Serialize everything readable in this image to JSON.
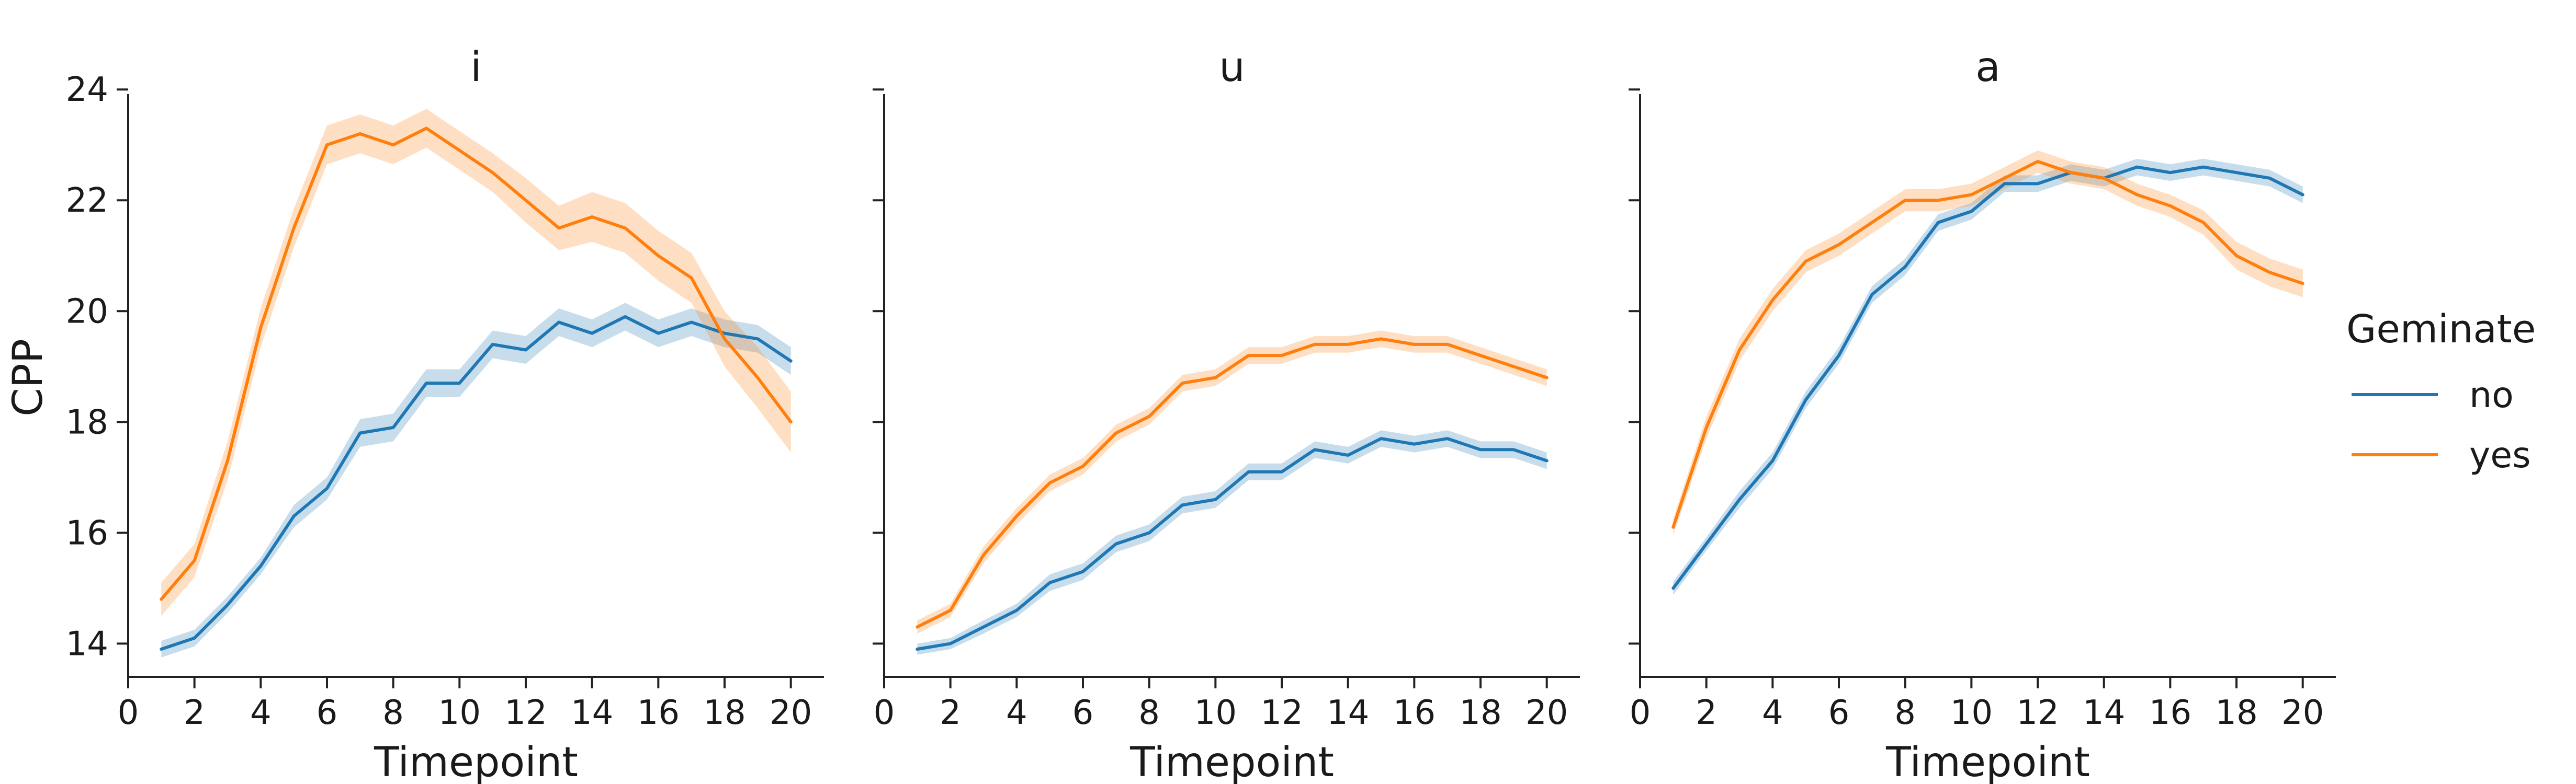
{
  "colors": {
    "no": "#1f77b4",
    "yes": "#ff7f0e"
  },
  "legend": {
    "title": "Geminate",
    "entries": [
      {
        "name": "no",
        "color": "#1f77b4"
      },
      {
        "name": "yes",
        "color": "#ff7f0e"
      }
    ],
    "placement": "right"
  },
  "chart_data": [
    {
      "type": "line",
      "title": "i",
      "xlabel": "Timepoint",
      "ylabel": "CPP",
      "xlim": [
        0,
        21
      ],
      "ylim": [
        13.4,
        24.2
      ],
      "xticks": [
        0,
        2,
        4,
        6,
        8,
        10,
        12,
        14,
        16,
        18,
        20
      ],
      "yticks": [
        14,
        16,
        18,
        20,
        22,
        24
      ],
      "grid": false,
      "x": [
        1,
        2,
        3,
        4,
        5,
        6,
        7,
        8,
        9,
        10,
        11,
        12,
        13,
        14,
        15,
        16,
        17,
        18,
        19,
        20
      ],
      "series": [
        {
          "name": "no",
          "values": [
            13.9,
            14.1,
            14.7,
            15.4,
            16.3,
            16.8,
            17.8,
            17.9,
            18.7,
            18.7,
            19.4,
            19.3,
            19.8,
            19.6,
            19.9,
            19.6,
            19.8,
            19.6,
            19.5,
            19.1
          ],
          "ci": [
            0.15,
            0.15,
            0.15,
            0.15,
            0.2,
            0.2,
            0.25,
            0.25,
            0.25,
            0.25,
            0.25,
            0.25,
            0.25,
            0.25,
            0.25,
            0.25,
            0.25,
            0.25,
            0.25,
            0.25
          ]
        },
        {
          "name": "yes",
          "values": [
            14.8,
            15.5,
            17.3,
            19.7,
            21.5,
            23.0,
            23.2,
            23.0,
            23.3,
            22.9,
            22.5,
            22.0,
            21.5,
            21.7,
            21.5,
            21.0,
            20.6,
            19.5,
            18.8,
            18.0
          ],
          "ci": [
            0.3,
            0.3,
            0.35,
            0.35,
            0.35,
            0.35,
            0.35,
            0.35,
            0.35,
            0.35,
            0.35,
            0.4,
            0.4,
            0.45,
            0.45,
            0.45,
            0.45,
            0.5,
            0.55,
            0.55
          ]
        }
      ]
    },
    {
      "type": "line",
      "title": "u",
      "xlabel": "Timepoint",
      "ylabel": "",
      "xlim": [
        0,
        21
      ],
      "ylim": [
        13.4,
        24.2
      ],
      "xticks": [
        0,
        2,
        4,
        6,
        8,
        10,
        12,
        14,
        16,
        18,
        20
      ],
      "yticks": [
        14,
        16,
        18,
        20,
        22,
        24
      ],
      "grid": false,
      "x": [
        1,
        2,
        3,
        4,
        5,
        6,
        7,
        8,
        9,
        10,
        11,
        12,
        13,
        14,
        15,
        16,
        17,
        18,
        19,
        20
      ],
      "series": [
        {
          "name": "no",
          "values": [
            13.9,
            14.0,
            14.3,
            14.6,
            15.1,
            15.3,
            15.8,
            16.0,
            16.5,
            16.6,
            17.1,
            17.1,
            17.5,
            17.4,
            17.7,
            17.6,
            17.7,
            17.5,
            17.5,
            17.3
          ],
          "ci": [
            0.1,
            0.1,
            0.12,
            0.12,
            0.15,
            0.15,
            0.15,
            0.15,
            0.15,
            0.15,
            0.15,
            0.15,
            0.15,
            0.15,
            0.15,
            0.15,
            0.15,
            0.15,
            0.15,
            0.15
          ]
        },
        {
          "name": "yes",
          "values": [
            14.3,
            14.6,
            15.6,
            16.3,
            16.9,
            17.2,
            17.8,
            18.1,
            18.7,
            18.8,
            19.2,
            19.2,
            19.4,
            19.4,
            19.5,
            19.4,
            19.4,
            19.2,
            19.0,
            18.8
          ],
          "ci": [
            0.12,
            0.12,
            0.15,
            0.15,
            0.15,
            0.15,
            0.15,
            0.15,
            0.15,
            0.15,
            0.15,
            0.15,
            0.15,
            0.15,
            0.15,
            0.15,
            0.15,
            0.15,
            0.15,
            0.15
          ]
        }
      ]
    },
    {
      "type": "line",
      "title": "a",
      "xlabel": "Timepoint",
      "ylabel": "",
      "xlim": [
        0,
        21
      ],
      "ylim": [
        13.4,
        24.2
      ],
      "xticks": [
        0,
        2,
        4,
        6,
        8,
        10,
        12,
        14,
        16,
        18,
        20
      ],
      "yticks": [
        14,
        16,
        18,
        20,
        22,
        24
      ],
      "grid": false,
      "x": [
        1,
        2,
        3,
        4,
        5,
        6,
        7,
        8,
        9,
        10,
        11,
        12,
        13,
        14,
        15,
        16,
        17,
        18,
        19,
        20
      ],
      "series": [
        {
          "name": "no",
          "values": [
            15.0,
            15.8,
            16.6,
            17.3,
            18.4,
            19.2,
            20.3,
            20.8,
            21.6,
            21.8,
            22.3,
            22.3,
            22.5,
            22.4,
            22.6,
            22.5,
            22.6,
            22.5,
            22.4,
            22.1
          ],
          "ci": [
            0.12,
            0.12,
            0.15,
            0.15,
            0.15,
            0.15,
            0.15,
            0.15,
            0.15,
            0.15,
            0.15,
            0.15,
            0.15,
            0.15,
            0.15,
            0.15,
            0.15,
            0.15,
            0.15,
            0.15
          ]
        },
        {
          "name": "yes",
          "values": [
            16.1,
            17.9,
            19.3,
            20.2,
            20.9,
            21.2,
            21.6,
            22.0,
            22.0,
            22.1,
            22.4,
            22.7,
            22.5,
            22.4,
            22.1,
            21.9,
            21.6,
            21.0,
            20.7,
            20.5
          ],
          "ci": [
            0.15,
            0.2,
            0.2,
            0.2,
            0.2,
            0.2,
            0.2,
            0.2,
            0.2,
            0.2,
            0.2,
            0.2,
            0.2,
            0.2,
            0.2,
            0.2,
            0.22,
            0.25,
            0.25,
            0.25
          ]
        }
      ]
    }
  ]
}
